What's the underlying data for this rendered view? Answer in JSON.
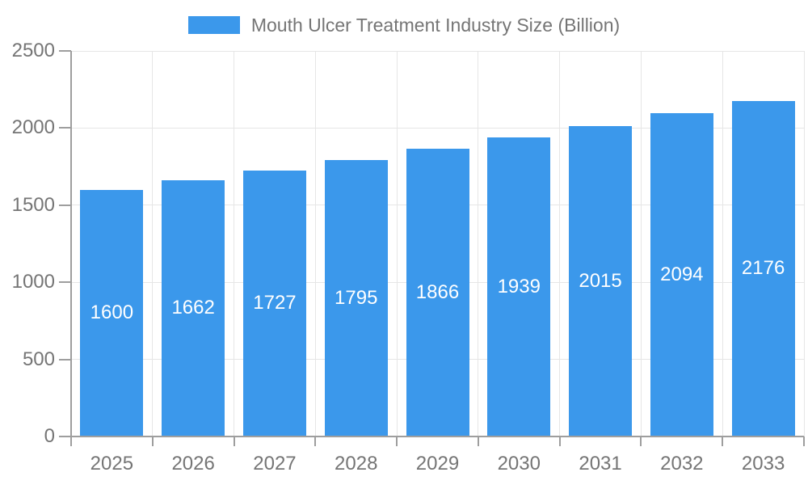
{
  "chart_data": {
    "type": "bar",
    "title": "Mouth Ulcer Treatment Industry Size (Billion)",
    "categories": [
      "2025",
      "2026",
      "2027",
      "2028",
      "2029",
      "2030",
      "2031",
      "2032",
      "2033"
    ],
    "values": [
      1600,
      1662,
      1727,
      1795,
      1866,
      1939,
      2015,
      2094,
      2176
    ],
    "xlabel": "",
    "ylabel": "",
    "ylim": [
      0,
      2500
    ],
    "y_ticks": [
      0,
      500,
      1000,
      1500,
      2000,
      2500
    ],
    "grid": true,
    "legend_position": "top",
    "bar_value_labels": "inside-middle",
    "colors": {
      "bar": "#3b98eb",
      "bar_label": "#ffffff",
      "axis_text": "#757575",
      "gridline": "#e6e6e6",
      "axis_line": "#9e9e9e",
      "background": "#ffffff"
    }
  }
}
